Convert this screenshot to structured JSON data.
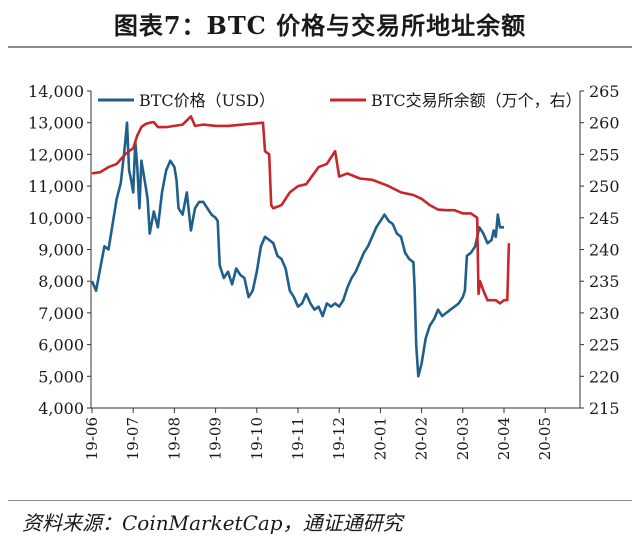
{
  "title": "图表7：BTC 价格与交易所地址余额",
  "source": "资料来源：CoinMarketCap，通证通研究",
  "chart_data": {
    "type": "line",
    "x_tick_labels": [
      "19-06",
      "19-07",
      "19-08",
      "19-09",
      "19-10",
      "19-11",
      "19-12",
      "20-01",
      "20-02",
      "20-03",
      "20-04",
      "20-05"
    ],
    "y_left": {
      "ticks": [
        "4,000",
        "5,000",
        "6,000",
        "7,000",
        "8,000",
        "9,000",
        "10,000",
        "11,000",
        "12,000",
        "13,000",
        "14,000"
      ],
      "range": [
        4000,
        14000
      ]
    },
    "y_right": {
      "ticks": [
        "215",
        "220",
        "225",
        "230",
        "235",
        "240",
        "245",
        "250",
        "255",
        "260",
        "265"
      ],
      "range": [
        215,
        265
      ]
    },
    "series": [
      {
        "name": "BTC价格（USD）",
        "axis": "left",
        "color": "#1f5f8b",
        "points": [
          [
            0.0,
            8000
          ],
          [
            0.1,
            7700
          ],
          [
            0.2,
            8400
          ],
          [
            0.3,
            9100
          ],
          [
            0.4,
            9000
          ],
          [
            0.5,
            9800
          ],
          [
            0.6,
            10600
          ],
          [
            0.7,
            11100
          ],
          [
            0.8,
            12300
          ],
          [
            0.85,
            13000
          ],
          [
            0.9,
            11500
          ],
          [
            0.95,
            11200
          ],
          [
            1.0,
            10800
          ],
          [
            1.05,
            12400
          ],
          [
            1.1,
            11600
          ],
          [
            1.15,
            10300
          ],
          [
            1.2,
            11800
          ],
          [
            1.3,
            11000
          ],
          [
            1.35,
            10600
          ],
          [
            1.4,
            9500
          ],
          [
            1.5,
            10200
          ],
          [
            1.6,
            9700
          ],
          [
            1.7,
            10800
          ],
          [
            1.8,
            11500
          ],
          [
            1.9,
            11800
          ],
          [
            2.0,
            11600
          ],
          [
            2.05,
            11200
          ],
          [
            2.1,
            10300
          ],
          [
            2.2,
            10100
          ],
          [
            2.3,
            10800
          ],
          [
            2.4,
            9600
          ],
          [
            2.5,
            10300
          ],
          [
            2.6,
            10500
          ],
          [
            2.7,
            10500
          ],
          [
            2.8,
            10300
          ],
          [
            2.9,
            10100
          ],
          [
            3.0,
            10000
          ],
          [
            3.05,
            9900
          ],
          [
            3.1,
            8500
          ],
          [
            3.2,
            8100
          ],
          [
            3.3,
            8300
          ],
          [
            3.4,
            7900
          ],
          [
            3.5,
            8400
          ],
          [
            3.6,
            8200
          ],
          [
            3.7,
            8100
          ],
          [
            3.8,
            7500
          ],
          [
            3.9,
            7700
          ],
          [
            4.0,
            8300
          ],
          [
            4.1,
            9100
          ],
          [
            4.2,
            9400
          ],
          [
            4.3,
            9300
          ],
          [
            4.4,
            9200
          ],
          [
            4.5,
            8800
          ],
          [
            4.6,
            8700
          ],
          [
            4.7,
            8400
          ],
          [
            4.8,
            7700
          ],
          [
            4.9,
            7500
          ],
          [
            5.0,
            7200
          ],
          [
            5.1,
            7300
          ],
          [
            5.2,
            7600
          ],
          [
            5.3,
            7300
          ],
          [
            5.4,
            7100
          ],
          [
            5.5,
            7200
          ],
          [
            5.6,
            6900
          ],
          [
            5.7,
            7300
          ],
          [
            5.8,
            7200
          ],
          [
            5.9,
            7300
          ],
          [
            6.0,
            7200
          ],
          [
            6.1,
            7400
          ],
          [
            6.2,
            7800
          ],
          [
            6.3,
            8100
          ],
          [
            6.4,
            8300
          ],
          [
            6.5,
            8600
          ],
          [
            6.6,
            8900
          ],
          [
            6.7,
            9100
          ],
          [
            6.8,
            9400
          ],
          [
            6.9,
            9700
          ],
          [
            7.0,
            9900
          ],
          [
            7.1,
            10100
          ],
          [
            7.2,
            9900
          ],
          [
            7.3,
            9800
          ],
          [
            7.4,
            9500
          ],
          [
            7.5,
            9400
          ],
          [
            7.6,
            8900
          ],
          [
            7.7,
            8700
          ],
          [
            7.8,
            8600
          ],
          [
            7.83,
            7800
          ],
          [
            7.87,
            6000
          ],
          [
            7.92,
            5000
          ],
          [
            8.0,
            5400
          ],
          [
            8.1,
            6200
          ],
          [
            8.2,
            6600
          ],
          [
            8.3,
            6800
          ],
          [
            8.4,
            7100
          ],
          [
            8.5,
            6900
          ],
          [
            8.6,
            7000
          ],
          [
            8.7,
            7100
          ],
          [
            8.8,
            7200
          ],
          [
            8.9,
            7300
          ],
          [
            9.0,
            7500
          ],
          [
            9.05,
            7700
          ],
          [
            9.1,
            8800
          ],
          [
            9.2,
            8900
          ],
          [
            9.3,
            9100
          ],
          [
            9.4,
            9700
          ],
          [
            9.5,
            9500
          ],
          [
            9.6,
            9200
          ],
          [
            9.7,
            9300
          ],
          [
            9.75,
            9600
          ],
          [
            9.8,
            9400
          ],
          [
            9.85,
            10100
          ],
          [
            9.9,
            9700
          ],
          [
            10.0,
            9700
          ]
        ]
      },
      {
        "name": "BTC交易所余额（万个，右）",
        "axis": "right",
        "color": "#c8262a",
        "points": [
          [
            0.0,
            252
          ],
          [
            0.2,
            252.2
          ],
          [
            0.4,
            253
          ],
          [
            0.6,
            253.5
          ],
          [
            0.8,
            255
          ],
          [
            1.0,
            256
          ],
          [
            1.1,
            258
          ],
          [
            1.2,
            259.3
          ],
          [
            1.3,
            259.8
          ],
          [
            1.4,
            260
          ],
          [
            1.5,
            260.1
          ],
          [
            1.6,
            259.3
          ],
          [
            1.8,
            259.3
          ],
          [
            2.0,
            259.5
          ],
          [
            2.2,
            259.7
          ],
          [
            2.4,
            261
          ],
          [
            2.5,
            259.5
          ],
          [
            2.7,
            259.7
          ],
          [
            3.0,
            259.5
          ],
          [
            3.3,
            259.5
          ],
          [
            3.5,
            259.6
          ],
          [
            3.8,
            259.8
          ],
          [
            4.15,
            260
          ],
          [
            4.2,
            255.5
          ],
          [
            4.3,
            255
          ],
          [
            4.35,
            247
          ],
          [
            4.4,
            246.5
          ],
          [
            4.6,
            247
          ],
          [
            4.8,
            249
          ],
          [
            5.0,
            250
          ],
          [
            5.2,
            250.3
          ],
          [
            5.5,
            253
          ],
          [
            5.7,
            253.5
          ],
          [
            5.9,
            255.5
          ],
          [
            6.0,
            251.5
          ],
          [
            6.2,
            252
          ],
          [
            6.5,
            251.2
          ],
          [
            6.8,
            251
          ],
          [
            7.0,
            250.5
          ],
          [
            7.2,
            250
          ],
          [
            7.5,
            249
          ],
          [
            7.8,
            248.6
          ],
          [
            8.0,
            248
          ],
          [
            8.2,
            247
          ],
          [
            8.4,
            246.3
          ],
          [
            8.6,
            246.2
          ],
          [
            8.8,
            246.2
          ],
          [
            9.0,
            245.7
          ],
          [
            9.2,
            245.7
          ],
          [
            9.35,
            245
          ],
          [
            9.38,
            233
          ],
          [
            9.42,
            235
          ],
          [
            9.5,
            233.5
          ],
          [
            9.6,
            232
          ],
          [
            9.8,
            232
          ],
          [
            9.9,
            231.5
          ],
          [
            10.0,
            232
          ],
          [
            10.08,
            232
          ],
          [
            10.12,
            241
          ]
        ]
      }
    ]
  }
}
